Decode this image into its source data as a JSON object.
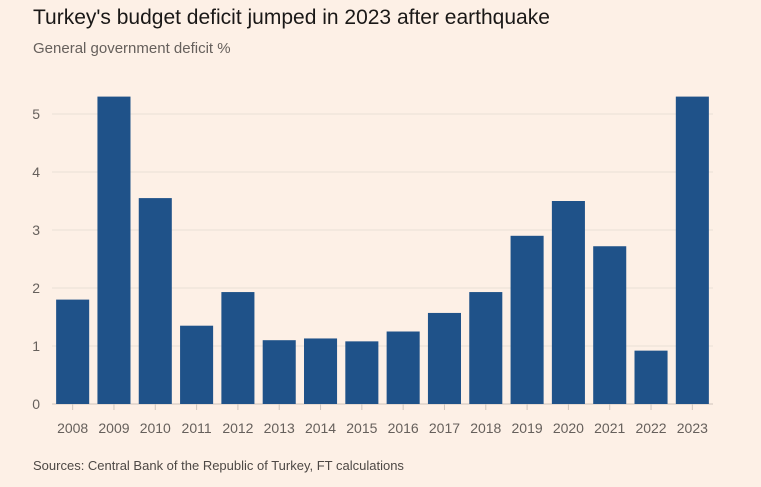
{
  "chart_data": {
    "type": "bar",
    "title": "Turkey's budget deficit jumped in 2023 after earthquake",
    "subtitle": "General government deficit %",
    "source": "Sources: Central Bank of the Republic of Turkey, FT calculations",
    "xlabel": "",
    "ylabel": "",
    "categories": [
      "2008",
      "2009",
      "2010",
      "2011",
      "2012",
      "2013",
      "2014",
      "2015",
      "2016",
      "2017",
      "2018",
      "2019",
      "2020",
      "2021",
      "2022",
      "2023"
    ],
    "values": [
      1.8,
      5.3,
      3.55,
      1.35,
      1.93,
      1.1,
      1.13,
      1.08,
      1.25,
      1.57,
      1.93,
      2.9,
      3.5,
      2.72,
      0.92,
      5.3
    ],
    "ylim": [
      0,
      5.3
    ],
    "yticks": [
      0,
      1,
      2,
      3,
      4,
      5
    ],
    "grid": true,
    "legend": "none",
    "colors": {
      "bar": "#1f5289",
      "grid": "#e9dfd6",
      "background": "#fdf0e6"
    }
  }
}
